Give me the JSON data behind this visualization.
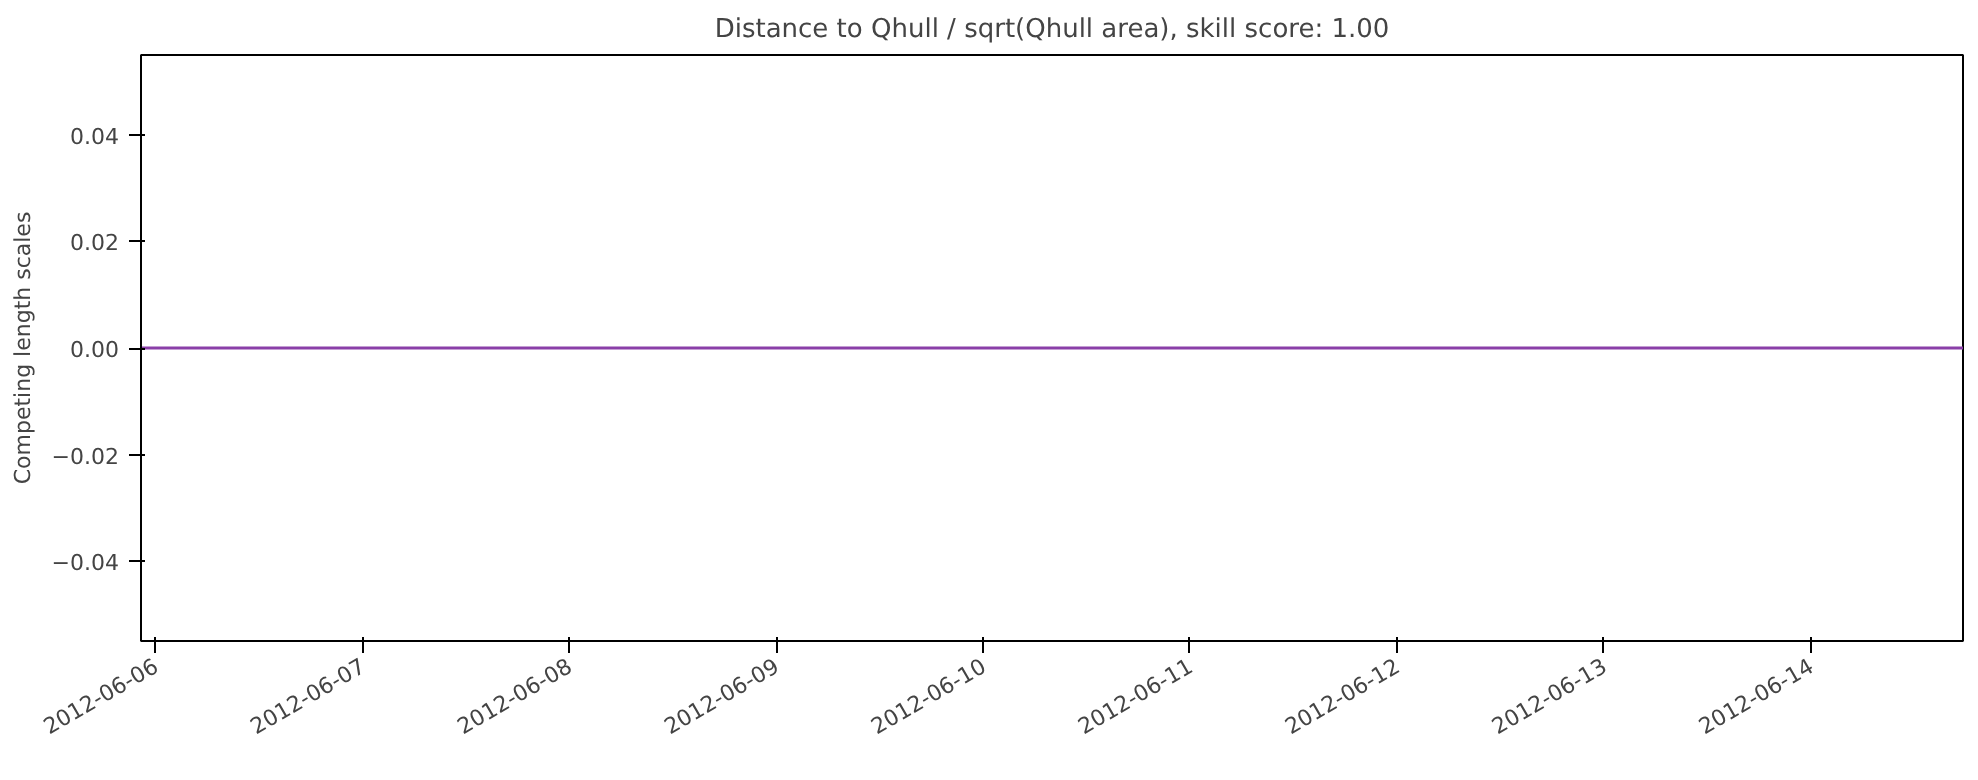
{
  "chart_data": {
    "type": "line",
    "title": "Distance to Qhull / sqrt(Qhull area), skill score: 1.00",
    "ylabel": "Competing length scales",
    "x": [
      "2012-06-05T22:20",
      "2012-06-14T17:40"
    ],
    "series": [
      {
        "color": "#8a3fa8",
        "values": [
          0,
          0
        ]
      }
    ],
    "xlim": [
      "2012-06-05T22:20",
      "2012-06-14T17:40"
    ],
    "xticks": [
      "2012-06-06",
      "2012-06-07",
      "2012-06-08",
      "2012-06-09",
      "2012-06-10",
      "2012-06-11",
      "2012-06-12",
      "2012-06-13",
      "2012-06-14"
    ],
    "ylim": [
      -0.055,
      0.055
    ],
    "yticks": [
      {
        "value": -0.04,
        "label": "−0.04"
      },
      {
        "value": -0.02,
        "label": "−0.02"
      },
      {
        "value": 0,
        "label": "0.00"
      },
      {
        "value": 0.02,
        "label": "0.02"
      },
      {
        "value": 0.04,
        "label": "0.04"
      }
    ],
    "grid": false,
    "marker": "none",
    "line_style": "solid"
  }
}
